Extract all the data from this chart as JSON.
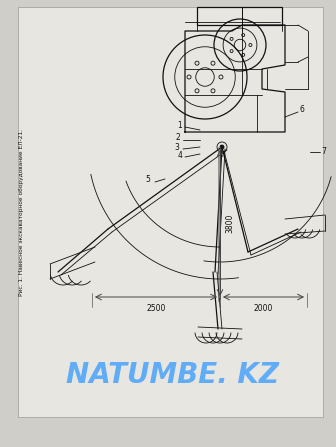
{
  "background_color": "#d0cec8",
  "watermark_text": "NATUMBE. KZ",
  "watermark_color": "#3399ff",
  "watermark_alpha": 0.75,
  "side_text": "Рис. 1. Навесное экскаваторное оборудование ЕЛ-21.",
  "dim_2500": "2500",
  "dim_3800": "3800",
  "dim_2000": "2000",
  "line_color": "#111111",
  "paper_color": "#e8e6e0"
}
